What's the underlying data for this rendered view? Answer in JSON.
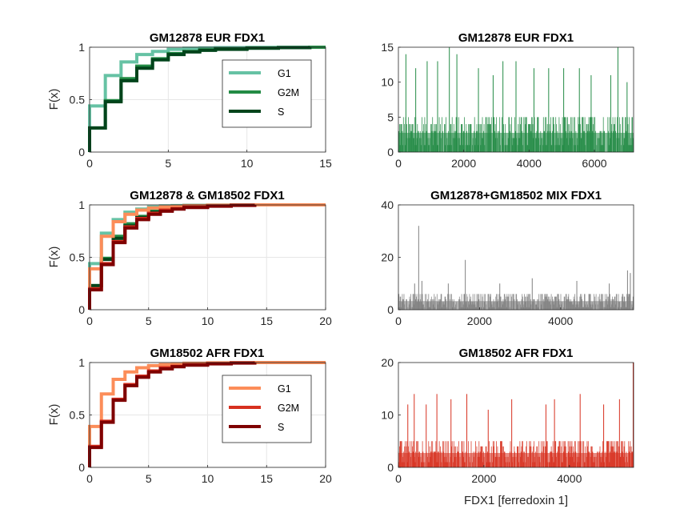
{
  "figure": {
    "xlabel_bottom_right": "FDX1 [ferredoxin 1]"
  },
  "chart_data": [
    {
      "type": "line",
      "subtype": "empirical-cdf-step",
      "title": "GM12878 EUR FDX1",
      "ylabel": "F(x)",
      "xlim": [
        0,
        15
      ],
      "ylim": [
        0,
        1
      ],
      "xticks": [
        "0",
        "5",
        "10",
        "15"
      ],
      "yticks": [
        "0",
        "0.5",
        "1"
      ],
      "grid": true,
      "legend": {
        "placement": "top-right",
        "entries": [
          "G1",
          "G2M",
          "S"
        ]
      },
      "series": [
        {
          "name": "G1",
          "color": "#66c2a4",
          "x": [
            0,
            1,
            2,
            3,
            4,
            5,
            6,
            7,
            8,
            10,
            12,
            14,
            15
          ],
          "y": [
            0.44,
            0.73,
            0.86,
            0.93,
            0.96,
            0.98,
            0.99,
            0.993,
            0.996,
            0.998,
            0.999,
            1.0,
            1.0
          ]
        },
        {
          "name": "G2M",
          "color": "#238b45",
          "x": [
            0,
            1,
            2,
            3,
            4,
            5,
            6,
            7,
            8,
            10,
            12,
            14,
            15
          ],
          "y": [
            0.23,
            0.49,
            0.7,
            0.82,
            0.89,
            0.94,
            0.96,
            0.975,
            0.985,
            0.993,
            0.997,
            1.0,
            1.0
          ]
        },
        {
          "name": "S",
          "color": "#00441b",
          "x": [
            0,
            1,
            2,
            3,
            4,
            5,
            6,
            7,
            8,
            10,
            12,
            14
          ],
          "y": [
            0.23,
            0.48,
            0.68,
            0.8,
            0.88,
            0.93,
            0.955,
            0.97,
            0.98,
            0.99,
            0.996,
            1.0
          ]
        }
      ]
    },
    {
      "type": "bar",
      "subtype": "per-cell-counts",
      "title": "GM12878 EUR FDX1",
      "xlim": [
        0,
        7200
      ],
      "ylim": [
        0,
        15
      ],
      "xticks": [
        0,
        2000,
        4000,
        6000
      ],
      "yticks": [
        0,
        5,
        10,
        15
      ],
      "color": "#238b45",
      "n_cells": 7200,
      "typical_max": 5,
      "peaks": [
        {
          "x": 230,
          "y": 14
        },
        {
          "x": 530,
          "y": 12
        },
        {
          "x": 880,
          "y": 13
        },
        {
          "x": 1200,
          "y": 13
        },
        {
          "x": 1560,
          "y": 15
        },
        {
          "x": 1790,
          "y": 14
        },
        {
          "x": 2450,
          "y": 12
        },
        {
          "x": 2900,
          "y": 11
        },
        {
          "x": 3200,
          "y": 13
        },
        {
          "x": 3600,
          "y": 13
        },
        {
          "x": 4150,
          "y": 12
        },
        {
          "x": 4600,
          "y": 12
        },
        {
          "x": 5060,
          "y": 12
        },
        {
          "x": 5540,
          "y": 12
        },
        {
          "x": 5900,
          "y": 11
        },
        {
          "x": 6500,
          "y": 11
        },
        {
          "x": 6720,
          "y": 15
        },
        {
          "x": 7000,
          "y": 10
        }
      ]
    },
    {
      "type": "line",
      "subtype": "empirical-cdf-step",
      "title": "GM12878 & GM18502 FDX1",
      "ylabel": "F(x)",
      "xlim": [
        0,
        20
      ],
      "ylim": [
        0,
        1
      ],
      "xticks": [
        "0",
        "5",
        "10",
        "15",
        "20"
      ],
      "yticks": [
        "0",
        "0.5",
        "1"
      ],
      "grid": true,
      "series": [
        {
          "color": "#66c2a4",
          "x": [
            0,
            1,
            2,
            3,
            4,
            5,
            6,
            7,
            8,
            10,
            12,
            14,
            15
          ],
          "y": [
            0.44,
            0.73,
            0.86,
            0.93,
            0.96,
            0.98,
            0.99,
            0.993,
            0.996,
            0.998,
            0.999,
            1.0,
            1.0
          ]
        },
        {
          "color": "#238b45",
          "x": [
            0,
            1,
            2,
            3,
            4,
            5,
            6,
            7,
            8,
            10,
            12,
            14,
            15
          ],
          "y": [
            0.23,
            0.49,
            0.7,
            0.82,
            0.89,
            0.94,
            0.96,
            0.975,
            0.985,
            0.993,
            0.997,
            1.0,
            1.0
          ]
        },
        {
          "color": "#00441b",
          "x": [
            0,
            1,
            2,
            3,
            4,
            5,
            6,
            7,
            8,
            10,
            12,
            14
          ],
          "y": [
            0.23,
            0.48,
            0.68,
            0.8,
            0.88,
            0.93,
            0.955,
            0.97,
            0.98,
            0.99,
            0.996,
            1.0
          ]
        },
        {
          "color": "#fc8d59",
          "x": [
            0,
            1,
            2,
            3,
            4,
            5,
            6,
            7,
            8,
            10,
            12,
            14,
            16,
            18,
            20
          ],
          "y": [
            0.39,
            0.7,
            0.84,
            0.91,
            0.95,
            0.97,
            0.98,
            0.988,
            0.993,
            0.997,
            0.999,
            1.0,
            1.0,
            1.0,
            1.0
          ]
        },
        {
          "color": "#d7301f",
          "x": [
            0,
            1,
            2,
            3,
            4,
            5,
            6,
            7,
            8,
            10,
            12,
            14
          ],
          "y": [
            0.2,
            0.44,
            0.65,
            0.79,
            0.87,
            0.92,
            0.95,
            0.965,
            0.978,
            0.99,
            0.996,
            1.0
          ]
        },
        {
          "color": "#7f0000",
          "x": [
            0,
            1,
            2,
            3,
            4,
            5,
            6,
            7,
            8,
            10,
            12,
            14
          ],
          "y": [
            0.19,
            0.43,
            0.64,
            0.78,
            0.86,
            0.91,
            0.94,
            0.96,
            0.975,
            0.988,
            0.995,
            1.0
          ]
        }
      ]
    },
    {
      "type": "bar",
      "subtype": "per-cell-counts",
      "title": "GM12878+GM18502 MIX FDX1",
      "xlim": [
        0,
        5800
      ],
      "ylim": [
        0,
        40
      ],
      "xticks": [
        0,
        2000,
        4000
      ],
      "yticks": [
        0,
        20,
        40
      ],
      "color": "#808080",
      "n_cells": 5800,
      "typical_max": 6,
      "peaks": [
        {
          "x": 400,
          "y": 10
        },
        {
          "x": 500,
          "y": 32
        },
        {
          "x": 580,
          "y": 11
        },
        {
          "x": 1230,
          "y": 10
        },
        {
          "x": 1650,
          "y": 19
        },
        {
          "x": 2500,
          "y": 10
        },
        {
          "x": 3300,
          "y": 12
        },
        {
          "x": 4400,
          "y": 11
        },
        {
          "x": 5200,
          "y": 10
        },
        {
          "x": 5650,
          "y": 15
        },
        {
          "x": 5720,
          "y": 14
        }
      ]
    },
    {
      "type": "line",
      "subtype": "empirical-cdf-step",
      "title": "GM18502 AFR FDX1",
      "ylabel": "F(x)",
      "xlim": [
        0,
        20
      ],
      "ylim": [
        0,
        1
      ],
      "xticks": [
        "0",
        "5",
        "10",
        "15",
        "20"
      ],
      "yticks": [
        "0",
        "0.5",
        "1"
      ],
      "grid": true,
      "legend": {
        "placement": "top-right",
        "entries": [
          "G1",
          "G2M",
          "S"
        ]
      },
      "series": [
        {
          "name": "G1",
          "color": "#fc8d59",
          "x": [
            0,
            1,
            2,
            3,
            4,
            5,
            6,
            7,
            8,
            10,
            12,
            14,
            16,
            18,
            20
          ],
          "y": [
            0.39,
            0.7,
            0.84,
            0.91,
            0.95,
            0.97,
            0.98,
            0.988,
            0.993,
            0.997,
            0.999,
            1.0,
            1.0,
            1.0,
            1.0
          ]
        },
        {
          "name": "G2M",
          "color": "#d7301f",
          "x": [
            0,
            1,
            2,
            3,
            4,
            5,
            6,
            7,
            8,
            10,
            12,
            14
          ],
          "y": [
            0.2,
            0.44,
            0.65,
            0.79,
            0.87,
            0.92,
            0.95,
            0.965,
            0.978,
            0.99,
            0.996,
            1.0
          ]
        },
        {
          "name": "S",
          "color": "#7f0000",
          "x": [
            0,
            1,
            2,
            3,
            4,
            5,
            6,
            7,
            8,
            10,
            12,
            14
          ],
          "y": [
            0.19,
            0.43,
            0.64,
            0.78,
            0.86,
            0.91,
            0.94,
            0.96,
            0.975,
            0.988,
            0.995,
            1.0
          ]
        }
      ]
    },
    {
      "type": "bar",
      "subtype": "per-cell-counts",
      "title": "GM18502 AFR FDX1",
      "xlim": [
        0,
        5500
      ],
      "ylim": [
        0,
        20
      ],
      "xticks": [
        0,
        2000,
        4000
      ],
      "yticks": [
        0,
        10,
        20
      ],
      "xlabel": "FDX1 [ferredoxin 1]",
      "color": "#d7301f",
      "n_cells": 5500,
      "typical_max": 5,
      "peaks": [
        {
          "x": 220,
          "y": 12
        },
        {
          "x": 370,
          "y": 14
        },
        {
          "x": 650,
          "y": 12
        },
        {
          "x": 900,
          "y": 14
        },
        {
          "x": 1230,
          "y": 13
        },
        {
          "x": 1600,
          "y": 14
        },
        {
          "x": 2100,
          "y": 11
        },
        {
          "x": 2650,
          "y": 13
        },
        {
          "x": 3450,
          "y": 12
        },
        {
          "x": 3650,
          "y": 13
        },
        {
          "x": 4250,
          "y": 14
        },
        {
          "x": 4800,
          "y": 12
        },
        {
          "x": 5170,
          "y": 13
        },
        {
          "x": 5490,
          "y": 20
        }
      ]
    }
  ]
}
